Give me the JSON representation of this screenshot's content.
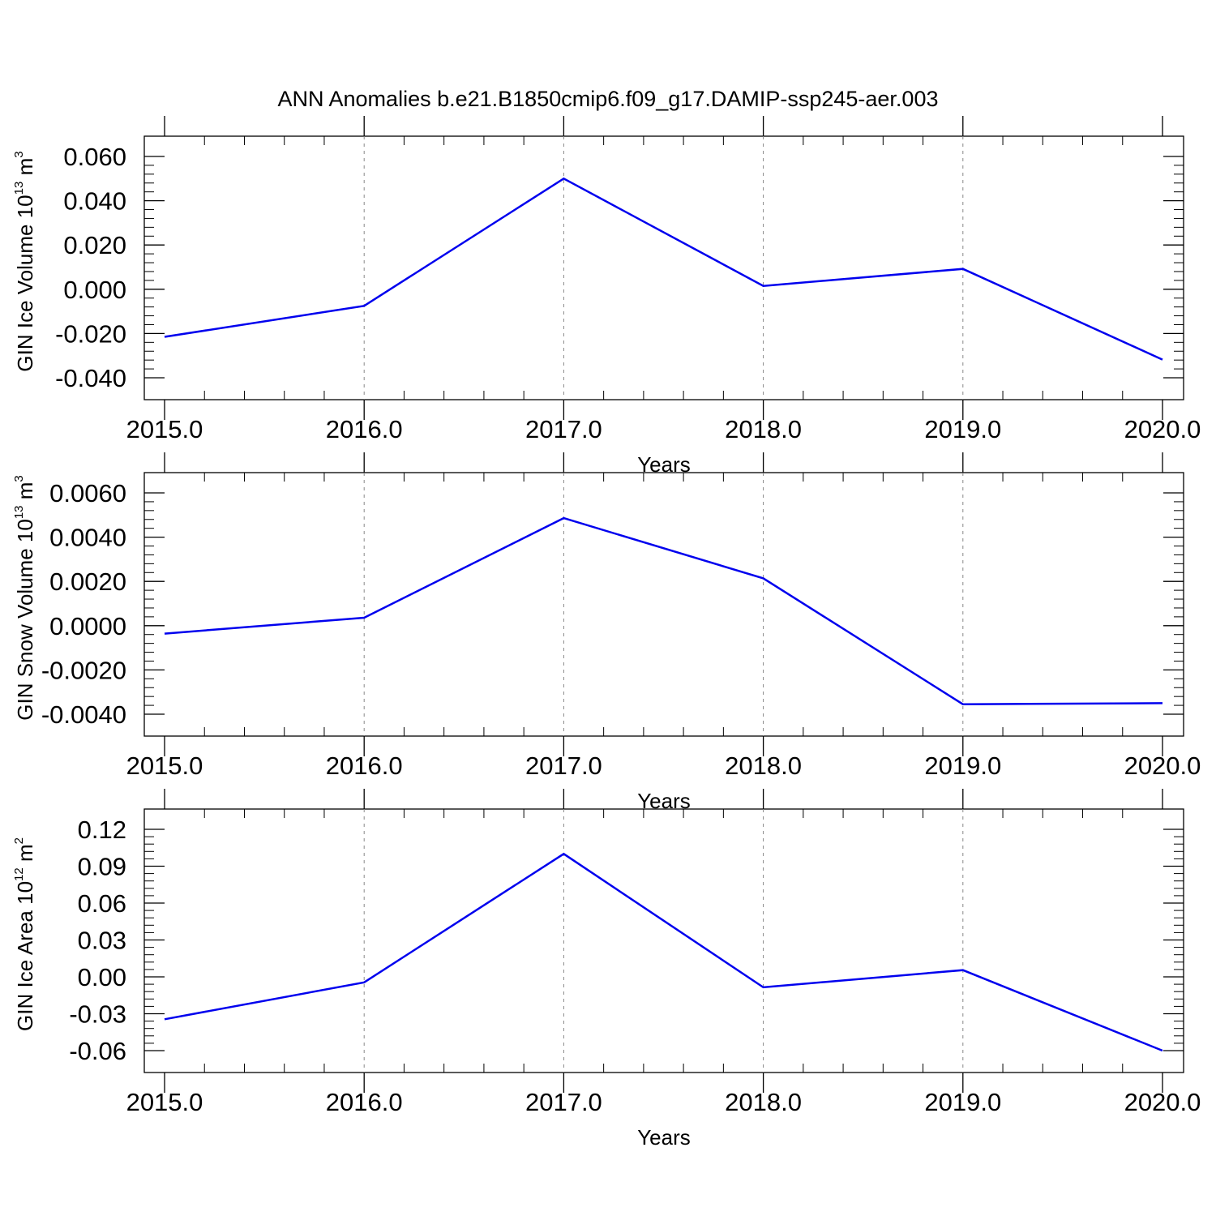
{
  "figure": {
    "title": "ANN Anomalies b.e21.B1850cmip6.f09_g17.DAMIP-ssp245-aer.003",
    "colors": {
      "line": "#0000ee",
      "axis": "#000000",
      "grid": "#888888"
    }
  },
  "chart_data": [
    {
      "type": "line",
      "title": "",
      "xlabel": "Years",
      "ylabel": {
        "base": "GIN Ice Volume 10",
        "exponent": "13",
        "unit": " m",
        "unit_exponent": "3"
      },
      "x": [
        2015,
        2016,
        2017,
        2018,
        2019,
        2020
      ],
      "xticks": [
        "2015.0",
        "2016.0",
        "2017.0",
        "2018.0",
        "2019.0",
        "2020.0"
      ],
      "xlim": [
        2015,
        2020.1
      ],
      "series": [
        {
          "values": [
            -0.0215,
            -0.0075,
            0.05,
            0.0015,
            0.0092,
            -0.0318
          ]
        }
      ],
      "ylim": [
        -0.04,
        0.0635
      ],
      "yticks": [
        -0.04,
        -0.02,
        0.0,
        0.02,
        0.04,
        0.06
      ],
      "ytick_labels": [
        "-0.040",
        "-0.020",
        "0.000",
        "0.020",
        "0.040",
        "0.060"
      ],
      "grid": "x-dashed"
    },
    {
      "type": "line",
      "title": "",
      "xlabel": "Years",
      "ylabel": {
        "base": "GIN Snow Volume 10",
        "exponent": "13",
        "unit": " m",
        "unit_exponent": "3"
      },
      "x": [
        2015,
        2016,
        2017,
        2018,
        2019,
        2020
      ],
      "xticks": [
        "2015.0",
        "2016.0",
        "2017.0",
        "2018.0",
        "2019.0",
        "2020.0"
      ],
      "xlim": [
        2015,
        2020.1
      ],
      "series": [
        {
          "values": [
            -0.00036,
            0.00036,
            0.00486,
            0.00214,
            -0.00355,
            -0.0035
          ]
        }
      ],
      "ylim": [
        -0.004,
        0.00635
      ],
      "yticks": [
        -0.004,
        -0.002,
        0.0,
        0.002,
        0.004,
        0.006
      ],
      "ytick_labels": [
        "-0.0040",
        "-0.0020",
        "0.0000",
        "0.0020",
        "0.0040",
        "0.0060"
      ],
      "grid": "x-dashed"
    },
    {
      "type": "line",
      "title": "",
      "xlabel": "Years",
      "ylabel": {
        "base": "GIN Ice Area 10",
        "exponent": "12",
        "unit": " m",
        "unit_exponent": "2"
      },
      "x": [
        2015,
        2016,
        2017,
        2018,
        2019,
        2020
      ],
      "xticks": [
        "2015.0",
        "2016.0",
        "2017.0",
        "2018.0",
        "2019.0",
        "2020.0"
      ],
      "xlim": [
        2015,
        2020.1
      ],
      "series": [
        {
          "values": [
            -0.0345,
            -0.0045,
            0.1,
            -0.0085,
            0.0055,
            -0.06
          ]
        }
      ],
      "ylim": [
        -0.06,
        0.1175
      ],
      "yticks": [
        -0.06,
        -0.03,
        0.0,
        0.03,
        0.06,
        0.09,
        0.12
      ],
      "ytick_labels": [
        "-0.06",
        "-0.03",
        "0.00",
        "0.03",
        "0.06",
        "0.09",
        "0.12"
      ],
      "grid": "x-dashed"
    }
  ]
}
